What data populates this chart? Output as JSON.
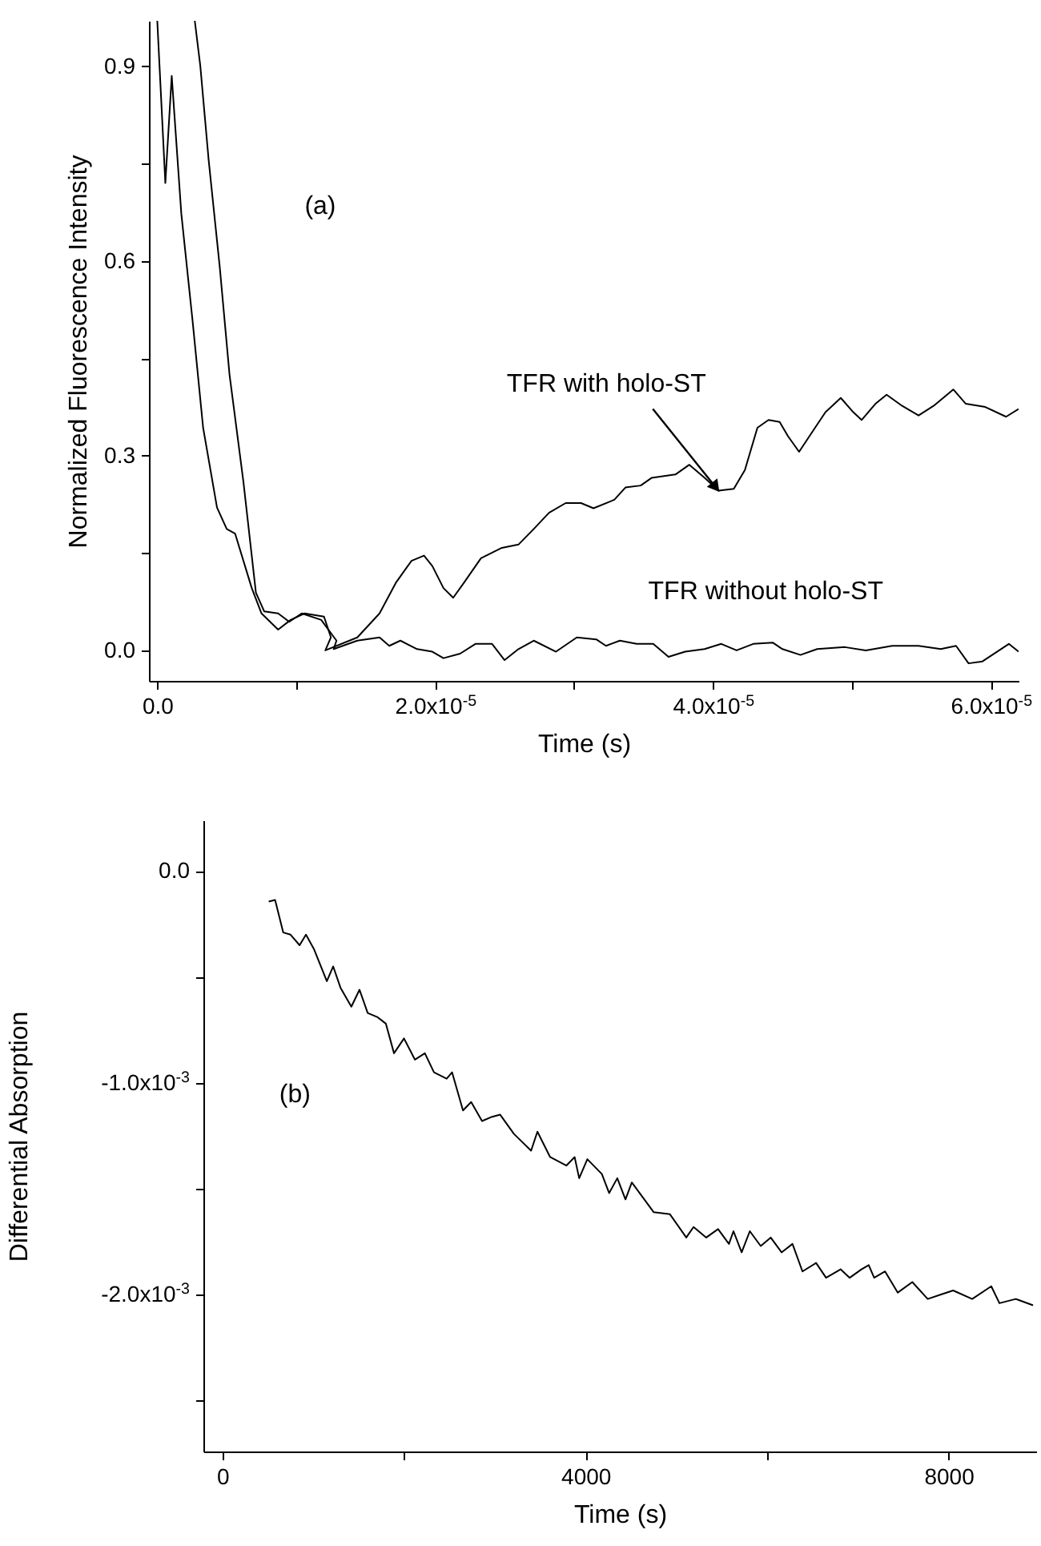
{
  "chart_data": [
    {
      "type": "line",
      "xlabel": "Time (s)",
      "ylabel": "Normalized Fluorescence Intensity",
      "xlim": [
        -6e-07,
        6.2e-05
      ],
      "ylim": [
        -0.047,
        0.97
      ],
      "xticks": [
        {
          "value": 0,
          "label": "0.0"
        },
        {
          "value": 1e-05,
          "label": null
        },
        {
          "value": 2e-05,
          "label": "2.0x10$^{-5}$"
        },
        {
          "value": 3e-05,
          "label": null
        },
        {
          "value": 4e-05,
          "label": "4.0x10$^{-5}$"
        },
        {
          "value": 5e-05,
          "label": null
        },
        {
          "value": 6e-05,
          "label": "6.0x10$^{-5}$"
        }
      ],
      "yticks": [
        {
          "value": 0,
          "label": "0.0"
        },
        {
          "value": 0.15,
          "label": null
        },
        0.3,
        {
          "value": 0.45,
          "label": null
        },
        0.6,
        {
          "value": 0.75,
          "label": null
        },
        0.9
      ],
      "annotations": [
        "(a)",
        {
          "text": "TFR with holo-ST",
          "x": 4.04e-05,
          "y": 0.246
        },
        {
          "text": "TFR without holo-ST",
          "x": 4.38e-05,
          "y": 0.0
        }
      ],
      "series": [
        {
          "color": "#000000",
          "x": [
            0,
            5.8e-07,
            1.04e-06,
            1.73e-06,
            2.54e-06,
            3.3e-06,
            4.3e-06,
            5e-06,
            5.6e-06,
            6.8e-06,
            7.5e-06,
            8.7e-06,
            9.6e-06,
            1.06e-05,
            1.2e-05,
            1.25e-05,
            1.21e-05,
            1.44e-05,
            1.6e-05,
            1.72e-05,
            1.83e-05,
            1.92e-05,
            1.98e-05,
            2.06e-05,
            2.13e-05,
            2.21e-05,
            2.33e-05,
            2.48e-05,
            2.6e-05,
            2.71e-05,
            2.82e-05,
            2.94e-05,
            3.05e-05,
            3.14e-05,
            3.29e-05,
            3.37e-05,
            3.48e-05,
            3.56e-05,
            3.73e-05,
            3.83e-05,
            3.94e-05,
            4.04e-05,
            4.15e-05,
            4.23e-05,
            4.32e-05,
            4.4e-05,
            4.48e-05,
            4.54e-05,
            4.62e-05,
            4.71e-05,
            4.81e-05,
            4.92e-05,
            5.01e-05,
            5.07e-05,
            5.17e-05,
            5.25e-05,
            5.36e-05,
            5.48e-05,
            5.59e-05,
            5.73e-05,
            5.82e-05,
            5.96e-05,
            6.11e-05,
            6.2e-05
          ],
          "values": [
            0.97,
            0.72,
            0.885,
            0.673,
            0.508,
            0.343,
            0.22,
            0.187,
            0.18,
            0.096,
            0.057,
            0.032,
            0.047,
            0.057,
            0.052,
            0.02,
            0.0,
            0.02,
            0.057,
            0.105,
            0.138,
            0.146,
            0.13,
            0.096,
            0.081,
            0.105,
            0.142,
            0.158,
            0.163,
            0.187,
            0.212,
            0.227,
            0.227,
            0.219,
            0.232,
            0.251,
            0.254,
            0.266,
            0.271,
            0.286,
            0.266,
            0.246,
            0.249,
            0.278,
            0.343,
            0.355,
            0.352,
            0.33,
            0.306,
            0.335,
            0.367,
            0.389,
            0.367,
            0.355,
            0.38,
            0.394,
            0.377,
            0.362,
            0.377,
            0.402,
            0.38,
            0.375,
            0.36,
            0.372
          ]
        },
        {
          "color": "#000000",
          "x": [
            2.7e-06,
            3.1e-06,
            3.7e-06,
            4.5e-06,
            5.2e-06,
            6.2e-06,
            7.1e-06,
            7.7e-06,
            8.7e-06,
            9.5e-06,
            1.04e-05,
            1.18e-05,
            1.29e-05,
            1.27e-05,
            1.44e-05,
            1.6e-05,
            1.67e-05,
            1.75e-05,
            1.87e-05,
            1.98e-05,
            2.06e-05,
            2.18e-05,
            2.29e-05,
            2.41e-05,
            2.5e-05,
            2.6e-05,
            2.71e-05,
            2.87e-05,
            3.02e-05,
            3.16e-05,
            3.23e-05,
            3.33e-05,
            3.45e-05,
            3.57e-05,
            3.68e-05,
            3.8e-05,
            3.94e-05,
            4.06e-05,
            4.17e-05,
            4.29e-05,
            4.43e-05,
            4.5e-05,
            4.63e-05,
            4.75e-05,
            4.95e-05,
            5.1e-05,
            5.29e-05,
            5.48e-05,
            5.64e-05,
            5.75e-05,
            5.84e-05,
            5.94e-05,
            6.13e-05,
            6.2e-05
          ],
          "values": [
            0.97,
            0.9,
            0.755,
            0.59,
            0.425,
            0.26,
            0.089,
            0.06,
            0.057,
            0.044,
            0.057,
            0.047,
            0.015,
            0.002,
            0.015,
            0.02,
            0.007,
            0.015,
            0.002,
            -0.002,
            -0.012,
            -0.005,
            0.01,
            0.01,
            -0.015,
            0.002,
            0.015,
            -0.002,
            0.02,
            0.017,
            0.007,
            0.015,
            0.01,
            0.01,
            -0.01,
            -0.002,
            0.002,
            0.01,
            0.0,
            0.01,
            0.012,
            0.002,
            -0.007,
            0.002,
            0.005,
            0.0,
            0.007,
            0.007,
            0.002,
            0.007,
            -0.02,
            -0.017,
            0.01,
            -0.002
          ]
        }
      ]
    },
    {
      "type": "line",
      "xlabel": "Time (s)",
      "ylabel": "Differential Absorption",
      "xlim": [
        -210,
        8965
      ],
      "ylim": [
        -0.00274,
        0.00024
      ],
      "xticks": [
        0,
        {
          "value": 2000,
          "label": null
        },
        4000,
        {
          "value": 6000,
          "label": null
        },
        8000
      ],
      "yticks": [
        {
          "value": 0,
          "label": "0.0"
        },
        {
          "value": -0.0005,
          "label": null
        },
        {
          "value": -0.001,
          "label": "-1.0x10$^{-3}$"
        },
        {
          "value": -0.0015,
          "label": null
        },
        {
          "value": -0.002,
          "label": "-2.0x10$^{-3}$"
        },
        {
          "value": -0.0025,
          "label": null
        }
      ],
      "annotations": [
        "(b)"
      ],
      "series": [
        {
          "color": "#000000",
          "x": [
            510,
            580,
            670,
            750,
            850,
            920,
            1010,
            1150,
            1220,
            1300,
            1420,
            1510,
            1600,
            1710,
            1800,
            1890,
            2000,
            2120,
            2230,
            2330,
            2470,
            2530,
            2650,
            2740,
            2860,
            2970,
            3060,
            3210,
            3400,
            3470,
            3610,
            3790,
            3880,
            3930,
            4020,
            4180,
            4260,
            4350,
            4440,
            4510,
            4630,
            4750,
            4930,
            5110,
            5190,
            5330,
            5460,
            5580,
            5630,
            5720,
            5810,
            5930,
            6040,
            6160,
            6280,
            6390,
            6540,
            6650,
            6810,
            6910,
            7040,
            7120,
            7180,
            7300,
            7440,
            7600,
            7770,
            7910,
            8050,
            8260,
            8470,
            8560,
            8740,
            8930
          ],
          "values": [
            -0.000144,
            -0.000136,
            -0.00029,
            -0.0003,
            -0.00035,
            -0.0003,
            -0.00037,
            -0.00052,
            -0.00045,
            -0.00055,
            -0.00064,
            -0.00056,
            -0.00067,
            -0.00069,
            -0.00072,
            -0.00086,
            -0.00079,
            -0.00089,
            -0.00086,
            -0.00095,
            -0.00098,
            -0.00095,
            -0.00113,
            -0.00109,
            -0.00118,
            -0.00116,
            -0.00115,
            -0.00124,
            -0.00132,
            -0.00123,
            -0.00135,
            -0.00139,
            -0.00135,
            -0.00145,
            -0.00136,
            -0.00143,
            -0.00152,
            -0.00145,
            -0.00155,
            -0.00147,
            -0.00154,
            -0.00161,
            -0.00162,
            -0.00173,
            -0.00168,
            -0.00173,
            -0.00169,
            -0.00176,
            -0.0017,
            -0.0018,
            -0.0017,
            -0.00177,
            -0.00173,
            -0.0018,
            -0.00176,
            -0.00189,
            -0.00185,
            -0.00192,
            -0.00188,
            -0.00192,
            -0.00188,
            -0.00186,
            -0.00192,
            -0.00189,
            -0.00199,
            -0.00194,
            -0.00202,
            -0.002,
            -0.00198,
            -0.00202,
            -0.00196,
            -0.00204,
            -0.00202,
            -0.00205
          ]
        }
      ]
    }
  ]
}
